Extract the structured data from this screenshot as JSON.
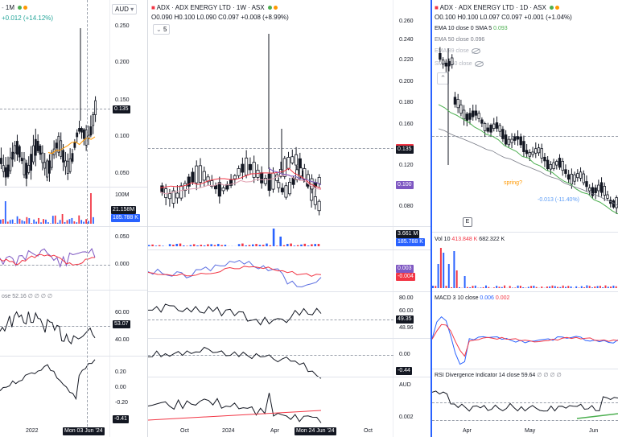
{
  "left": {
    "interval": "1M",
    "change": "+0.012 (+14.12%)",
    "currency": "AUD",
    "price_axis": [
      "0.250",
      "0.200",
      "0.150",
      "0.100",
      "0.050"
    ],
    "last_price": "0.135",
    "volume_axis": "100M",
    "vol_labels": [
      "21.158M",
      "185.788 K"
    ],
    "macd_axis": [
      "0.050",
      "0.000"
    ],
    "rsi_legend": "ose 52.16",
    "rsi_axis": [
      "60.00",
      "40.00"
    ],
    "rsi_value": "53.07",
    "osc_axis": [
      "0.20",
      "0.00",
      "-0.20"
    ],
    "osc_value": "-0.41",
    "time_axis": [
      "2022"
    ],
    "crosshair_date": "Mon 03 Jun '24"
  },
  "middle": {
    "title": "ADX · ADX ENERGY LTD · 1W · ASX",
    "ohlc": "O0.090 H0.100 L0.090 C0.097 +0.008 (+8.99%)",
    "indicators_count": "5",
    "price_axis": [
      "0.260",
      "0.240",
      "0.220",
      "0.200",
      "0.180",
      "0.160",
      "0.140",
      "0.120",
      "0.100",
      "0.080"
    ],
    "last_price": "0.135",
    "price_tag_2": "0.100",
    "vol_labels": [
      "3.661 M",
      "185.788 K"
    ],
    "macd_labels": [
      "0.003",
      "-0.004"
    ],
    "rsi_axis": [
      "80.00",
      "60.00"
    ],
    "rsi_value": "49.35",
    "rsi_value_2": "48.96",
    "osc_axis": [
      "0.00"
    ],
    "osc_value": "-0.44",
    "lower_currency": "AUD",
    "lower_axis": [
      "0.002"
    ],
    "time_axis": [
      "Oct",
      "2024",
      "Apr",
      "Oct"
    ],
    "crosshair_date": "Mon 24 Jun '24"
  },
  "right": {
    "title": "ADX · ADX ENERGY LTD · 1D · ASX",
    "ohlc": "O0.100 H0.100 L0.097 C0.097 +0.001 (+1.04%)",
    "ema1_label": "EMA 10 close 0 SMA 5",
    "ema1_value": "0.093",
    "ema2": "EMA 50 close 0.096",
    "ema3": "EMA 89 close",
    "sma": "SMA 150 close",
    "annotation": "spring?",
    "annotation_2": "-0.013 (-11.40%)",
    "e_marker": "E",
    "vol_label": "Vol 10",
    "vol_v1": "413.848 K",
    "vol_v2": "682.322 K",
    "macd_label": "MACD 3 10 close",
    "macd_v1": "0.006",
    "macd_v2": "0.002",
    "rsi_div": "RSI Divergence Indicator 14 close",
    "rsi_div_value": "59.64",
    "time_axis": [
      "Apr",
      "May",
      "Jun"
    ],
    "colors": {
      "up": "#26a69a",
      "down": "#ef5350",
      "blue": "#2962ff",
      "purple": "#7e57c2",
      "red": "#f23645"
    }
  }
}
